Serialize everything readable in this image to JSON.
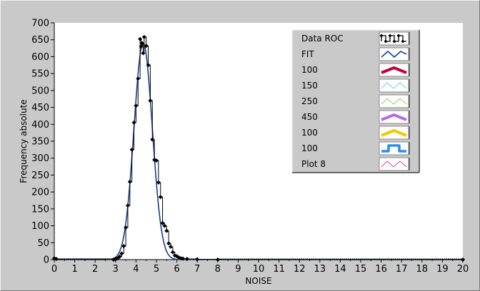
{
  "chart_data": {
    "type": "line",
    "xlabel": "NOISE",
    "ylabel": "Frequency absolute",
    "xlim": [
      0,
      20
    ],
    "ylim": [
      0,
      700
    ],
    "xticks": [
      0,
      1,
      2,
      3,
      4,
      5,
      6,
      7,
      8,
      9,
      10,
      11,
      12,
      13,
      14,
      15,
      16,
      17,
      18,
      19,
      20
    ],
    "yticks": [
      0,
      50,
      100,
      150,
      200,
      250,
      300,
      350,
      400,
      450,
      500,
      550,
      600,
      650,
      700
    ],
    "grid": false,
    "legend_position": "top-right",
    "series": [
      {
        "name": "Data ROC",
        "color": "#000000",
        "style": "step-with-markers",
        "points": [
          [
            0.0,
            4
          ],
          [
            0.1,
            2
          ],
          [
            2.9,
            0
          ],
          [
            3.0,
            1
          ],
          [
            3.1,
            4
          ],
          [
            3.2,
            9
          ],
          [
            3.3,
            18
          ],
          [
            3.4,
            40
          ],
          [
            3.5,
            95
          ],
          [
            3.6,
            160
          ],
          [
            3.7,
            230
          ],
          [
            3.8,
            325
          ],
          [
            3.9,
            405
          ],
          [
            4.0,
            455
          ],
          [
            4.1,
            535
          ],
          [
            4.2,
            652
          ],
          [
            4.25,
            630
          ],
          [
            4.3,
            640
          ],
          [
            4.35,
            610
          ],
          [
            4.4,
            658
          ],
          [
            4.5,
            632
          ],
          [
            4.6,
            575
          ],
          [
            4.7,
            470
          ],
          [
            4.8,
            355
          ],
          [
            4.9,
            295
          ],
          [
            5.0,
            293
          ],
          [
            5.1,
            228
          ],
          [
            5.2,
            185
          ],
          [
            5.3,
            108
          ],
          [
            5.4,
            100
          ],
          [
            5.5,
            85
          ],
          [
            5.6,
            48
          ],
          [
            5.7,
            38
          ],
          [
            5.8,
            22
          ],
          [
            5.9,
            12
          ],
          [
            6.0,
            10
          ],
          [
            6.1,
            6
          ],
          [
            6.2,
            4
          ],
          [
            6.3,
            3
          ],
          [
            6.5,
            2
          ],
          [
            7.0,
            1
          ],
          [
            8.0,
            0
          ],
          [
            20.0,
            0
          ]
        ]
      },
      {
        "name": "FIT",
        "color": "#1a3e8c",
        "style": "gaussian",
        "amplitude": 640,
        "mean": 4.35,
        "sigma": 0.45
      }
    ],
    "legend": [
      {
        "name": "Data ROC",
        "color": "#000000",
        "swatch": "step-markers"
      },
      {
        "name": "FIT",
        "color": "#1a4c9c",
        "swatch": "zigzag-medium"
      },
      {
        "name": "100",
        "color": "#c0003c",
        "swatch": "zigzag-thick"
      },
      {
        "name": "150",
        "color": "#6cc8ea",
        "swatch": "zigzag-thin"
      },
      {
        "name": "250",
        "color": "#8ad24a",
        "swatch": "zigzag-thin"
      },
      {
        "name": "450",
        "color": "#b86ae6",
        "swatch": "zigzag-thick"
      },
      {
        "name": "100",
        "color": "#f5c800",
        "swatch": "zigzag-thick"
      },
      {
        "name": "100",
        "color": "#2a8ee6",
        "swatch": "square-step"
      },
      {
        "name": "Plot 8",
        "color": "#d63ca0",
        "swatch": "zigzag-thin"
      }
    ]
  }
}
